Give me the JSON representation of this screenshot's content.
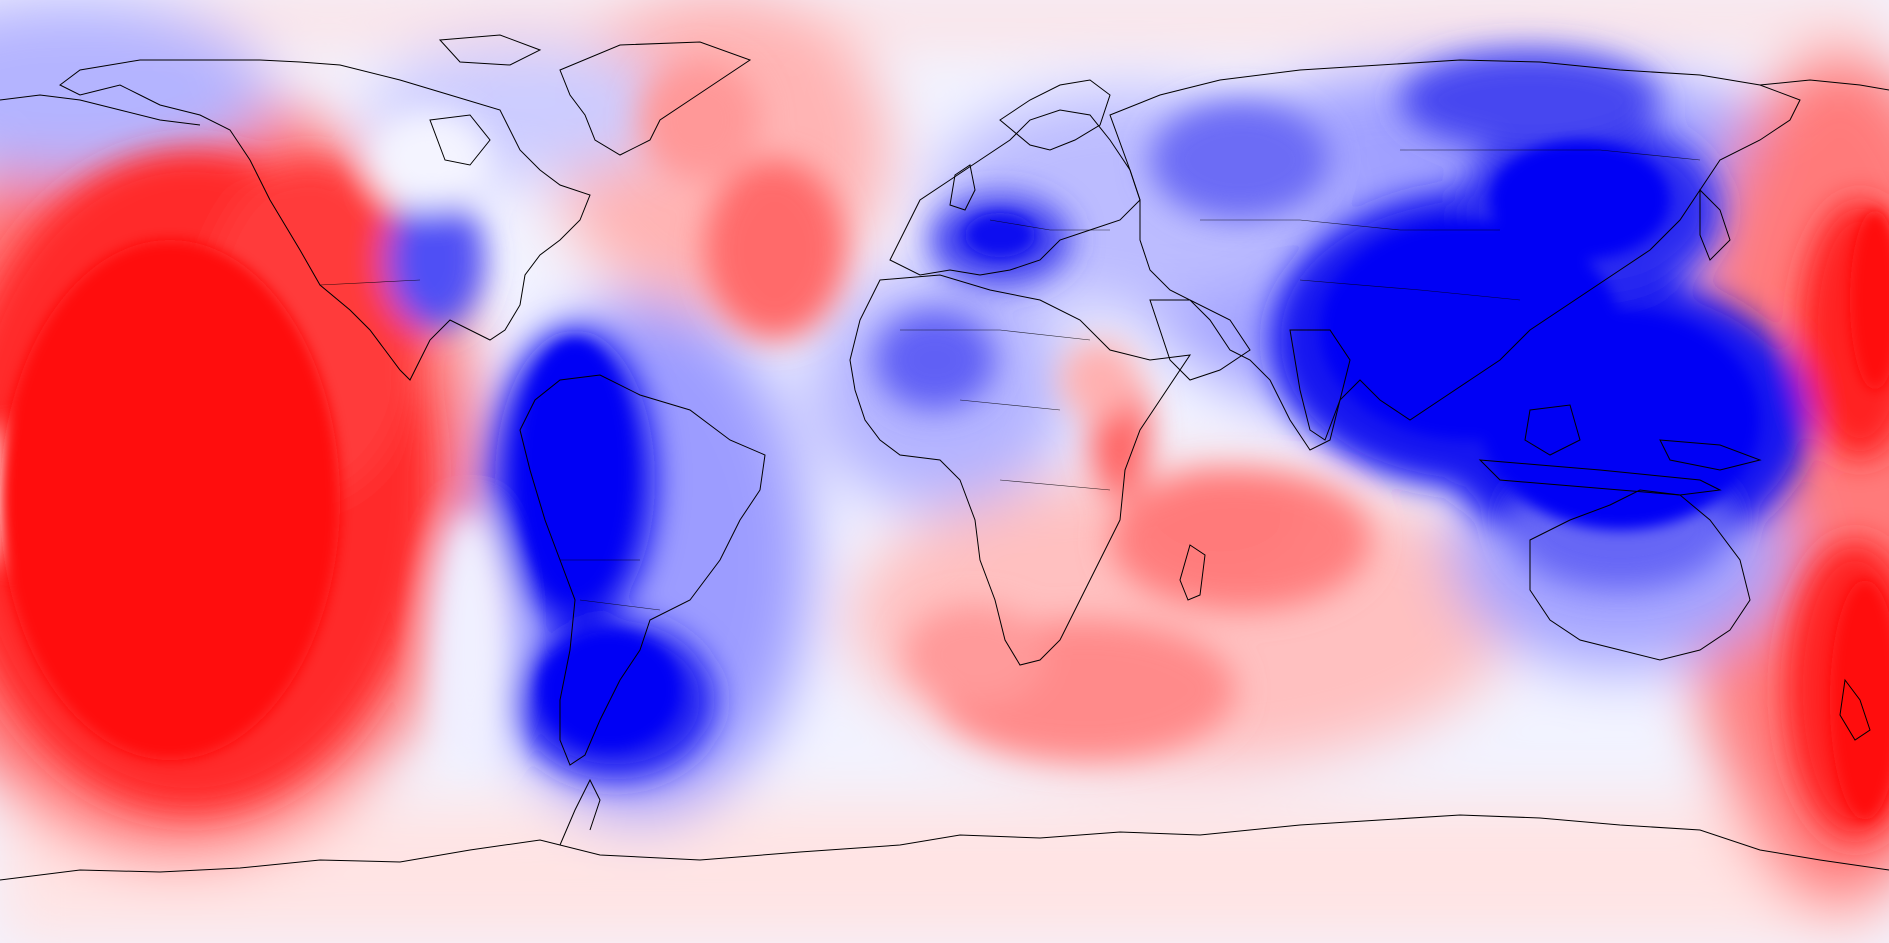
{
  "map": {
    "projection": "equirectangular",
    "center_longitude": -150,
    "colors": {
      "background": "#f2f3ff",
      "pos_max": "#ff0f0f",
      "neg_max": "#0000f5",
      "near_zero": "#f4f4ff",
      "coastline": "#000000"
    },
    "positive_regions": [
      "central-pacific",
      "north-atlantic",
      "south-indian-ocean",
      "southwest-pacific",
      "east-africa-rift",
      "north-pacific-arctic"
    ],
    "negative_regions": [
      "south-america",
      "southeast-asia-indonesia",
      "east-asia",
      "europe-alps",
      "west-africa",
      "australia",
      "siberia",
      "north-america-arctic"
    ]
  }
}
